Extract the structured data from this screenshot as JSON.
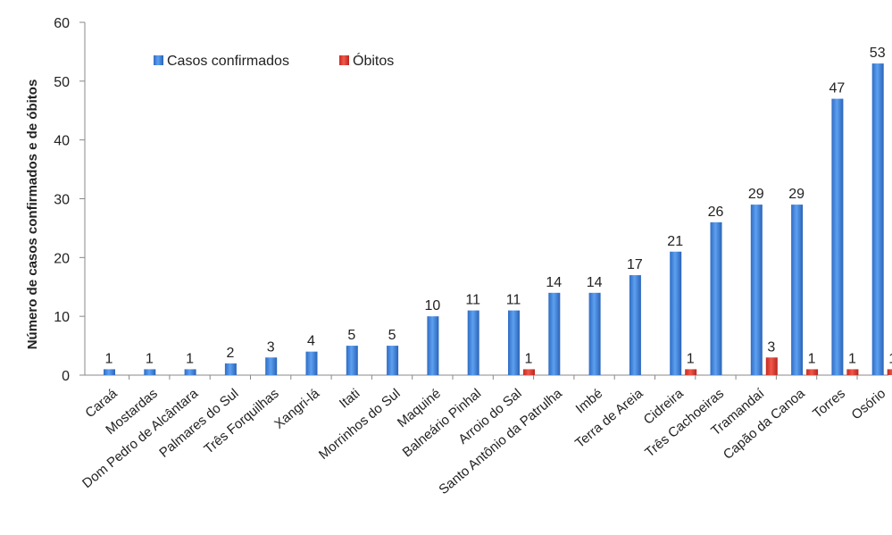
{
  "chart_data": {
    "type": "bar",
    "title": "",
    "xlabel": "",
    "ylabel": "Número de casos confirmados e de óbitos",
    "ylim": [
      0,
      60
    ],
    "yticks": [
      0,
      10,
      20,
      30,
      40,
      50,
      60
    ],
    "grid": false,
    "legend_position": "top-left",
    "categories": [
      "Caraá",
      "Mostardas",
      "Dom Pedro de Alcântara",
      "Palmares do Sul",
      "Três Forquilhas",
      "Xangri-lá",
      "Itati",
      "Morrinhos do Sul",
      "Maquiné",
      "Balneário Pinhal",
      "Arroio do Sal",
      "Santo Antônio da Patrulha",
      "Imbé",
      "Terra de Areia",
      "Cidreira",
      "Três Cachoeiras",
      "Tramandaí",
      "Capão da Canoa",
      "Torres",
      "Osório"
    ],
    "series": [
      {
        "name": "Casos confirmados",
        "color": "#3b7fd8",
        "values": [
          1,
          1,
          1,
          2,
          3,
          4,
          5,
          5,
          10,
          11,
          11,
          14,
          14,
          17,
          21,
          26,
          29,
          29,
          47,
          53
        ]
      },
      {
        "name": "Óbitos",
        "color": "#e03a2f",
        "values": [
          null,
          null,
          null,
          null,
          null,
          null,
          null,
          null,
          null,
          null,
          1,
          null,
          null,
          null,
          1,
          null,
          3,
          1,
          1,
          1
        ]
      }
    ]
  }
}
